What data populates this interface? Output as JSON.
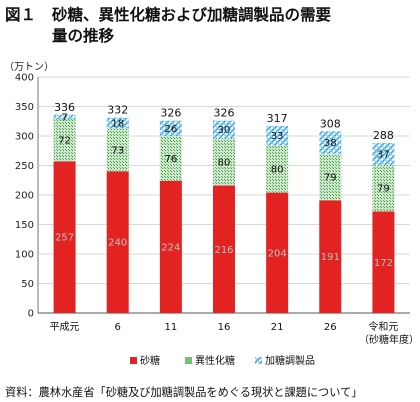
{
  "figure_label": "図１",
  "title_line1": "砂糖、異性化糖および加糖調製品の需要",
  "title_line2": "量の推移",
  "source": "資料：農林水産省「砂糖及び加糖調製品をめぐる現状と課題について」",
  "chart_data": {
    "type": "bar",
    "stacked": true,
    "ylabel": "（万トン）",
    "xlabel": "（砂糖年度）",
    "ylim": [
      0,
      400
    ],
    "yticks": [
      0,
      50,
      100,
      150,
      200,
      250,
      300,
      350,
      400
    ],
    "grid": true,
    "legend_position": "bottom",
    "categories": [
      "平成元",
      "6",
      "11",
      "16",
      "21",
      "26",
      "令和元"
    ],
    "series": [
      {
        "name": "砂糖",
        "color": "#e32322",
        "values": [
          257,
          240,
          224,
          216,
          204,
          191,
          172
        ]
      },
      {
        "name": "異性化糖",
        "color": "#a8d4a4",
        "values": [
          72,
          73,
          76,
          80,
          80,
          79,
          79
        ]
      },
      {
        "name": "加糖調製品",
        "color": "#5ab8e6",
        "values": [
          7,
          18,
          26,
          30,
          33,
          38,
          37
        ]
      }
    ],
    "totals": [
      336,
      332,
      326,
      326,
      317,
      308,
      288
    ]
  }
}
